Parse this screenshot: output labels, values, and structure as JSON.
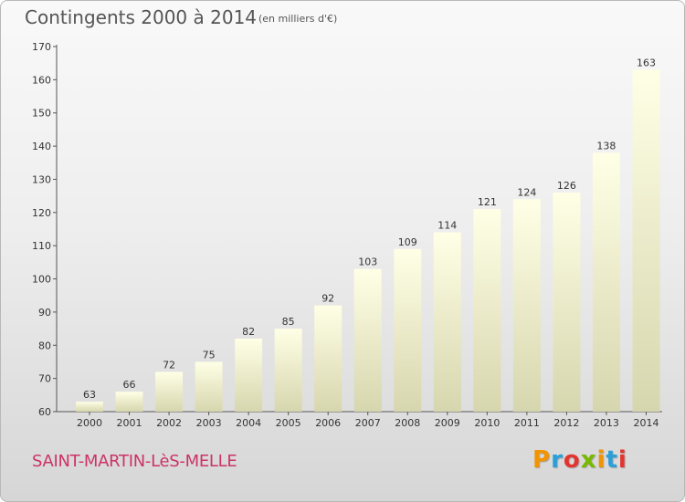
{
  "header": {
    "title": "Contingents 2000 à 2014",
    "unit": "(en milliers d'€)"
  },
  "footer": {
    "commune": "SAINT-MARTIN-LèS-MELLE",
    "logo_text": "Proxiti",
    "logo_colors": [
      "#f29400",
      "#2a9fd8",
      "#e3342f",
      "#7ab800",
      "#f29400",
      "#2a9fd8",
      "#e3342f"
    ]
  },
  "chart_data": {
    "type": "bar",
    "title": "Contingents 2000 à 2014",
    "subtitle": "(en milliers d'€)",
    "xlabel": "",
    "ylabel": "",
    "categories": [
      "2000",
      "2001",
      "2002",
      "2003",
      "2004",
      "2005",
      "2006",
      "2007",
      "2008",
      "2009",
      "2010",
      "2011",
      "2012",
      "2013",
      "2014"
    ],
    "values": [
      63,
      66,
      72,
      75,
      82,
      85,
      92,
      103,
      109,
      114,
      121,
      124,
      126,
      138,
      163
    ],
    "ylim": [
      60,
      170
    ],
    "yticks": [
      60,
      70,
      80,
      90,
      100,
      110,
      120,
      130,
      140,
      150,
      160,
      170
    ],
    "grid": false,
    "data_labels": true,
    "bar_color_top": "#ffffe6",
    "bar_color_bottom": "#d6d6ae"
  }
}
